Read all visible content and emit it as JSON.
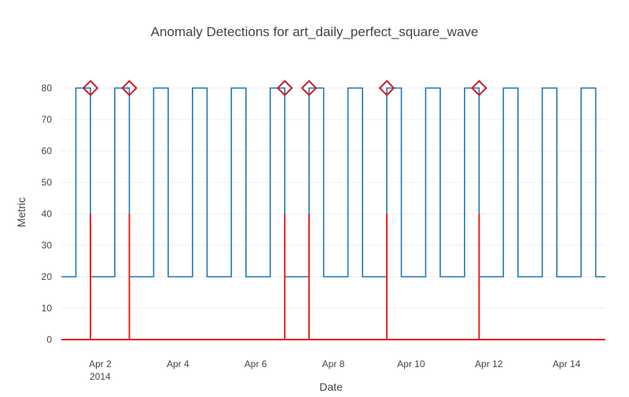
{
  "chart_data": {
    "type": "line",
    "title": "Anomaly Detections for art_daily_perfect_square_wave",
    "xlabel": "Date",
    "ylabel": "Metric",
    "x_start": "2014-04-01",
    "x_end": "2014-04-15",
    "ylim": [
      -3,
      88
    ],
    "yticks": [
      0,
      10,
      20,
      30,
      40,
      50,
      60,
      70,
      80
    ],
    "xticks": [
      {
        "date": "2014-04-02",
        "label": "Apr 2",
        "sublabel": "2014"
      },
      {
        "date": "2014-04-04",
        "label": "Apr 4",
        "sublabel": ""
      },
      {
        "date": "2014-04-06",
        "label": "Apr 6",
        "sublabel": ""
      },
      {
        "date": "2014-04-08",
        "label": "Apr 8",
        "sublabel": ""
      },
      {
        "date": "2014-04-10",
        "label": "Apr 10",
        "sublabel": ""
      },
      {
        "date": "2014-04-12",
        "label": "Apr 12",
        "sublabel": ""
      },
      {
        "date": "2014-04-14",
        "label": "Apr 14",
        "sublabel": ""
      }
    ],
    "grid": true,
    "legend": "none",
    "series": [
      {
        "style": "step",
        "color": "#1f77b4",
        "low": 20,
        "high": 80,
        "high_intervals": [
          [
            "2014-04-01 09:00",
            "2014-04-01 18:00"
          ],
          [
            "2014-04-02 09:00",
            "2014-04-02 18:00"
          ],
          [
            "2014-04-03 09:00",
            "2014-04-03 18:00"
          ],
          [
            "2014-04-04 09:00",
            "2014-04-04 18:00"
          ],
          [
            "2014-04-05 09:00",
            "2014-04-05 18:00"
          ],
          [
            "2014-04-06 09:00",
            "2014-04-06 18:00"
          ],
          [
            "2014-04-07 09:00",
            "2014-04-07 18:00"
          ],
          [
            "2014-04-08 09:00",
            "2014-04-08 18:00"
          ],
          [
            "2014-04-09 09:00",
            "2014-04-09 18:00"
          ],
          [
            "2014-04-10 09:00",
            "2014-04-10 18:00"
          ],
          [
            "2014-04-11 09:00",
            "2014-04-11 18:00"
          ],
          [
            "2014-04-12 09:00",
            "2014-04-12 18:00"
          ],
          [
            "2014-04-13 09:00",
            "2014-04-13 18:00"
          ],
          [
            "2014-04-14 09:00",
            "2014-04-14 18:00"
          ]
        ]
      },
      {
        "style": "spikes",
        "color": "#e8241b",
        "baseline": 0,
        "spike_value": 40,
        "times": [
          "2014-04-01 18:00",
          "2014-04-02 18:00",
          "2014-04-06 18:00",
          "2014-04-07 09:00",
          "2014-04-09 09:00",
          "2014-04-11 18:00"
        ]
      },
      {
        "style": "markers",
        "marker": "diamond-open",
        "color": "#c8202a",
        "value": 80,
        "times": [
          "2014-04-01 18:00",
          "2014-04-02 18:00",
          "2014-04-06 18:00",
          "2014-04-07 09:00",
          "2014-04-09 09:00",
          "2014-04-11 18:00"
        ]
      }
    ]
  }
}
